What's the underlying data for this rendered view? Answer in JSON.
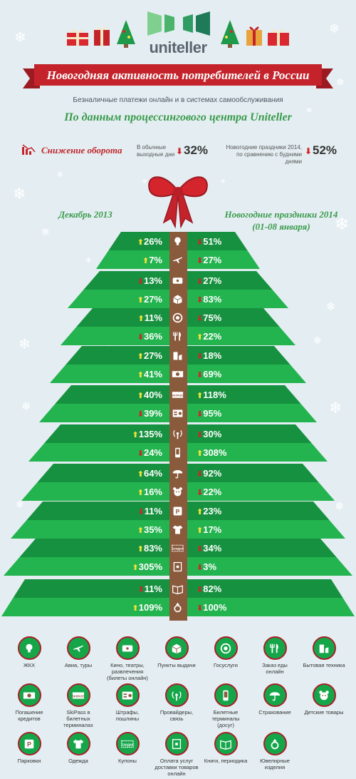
{
  "header": {
    "brand": "uniteller",
    "title": "Новогодняя активность потребителей в России",
    "subtitle": "Безналичные платежи онлайн и в системах самообслуживания",
    "source": "По данным процессингового центра Uniteller"
  },
  "decline": {
    "title": "Снижение оборота",
    "stat1_note_line1": "В обычные",
    "stat1_note_line2": "выходные дни",
    "stat1_value": "32%",
    "stat2_note_line1": "Новогодние праздники 2014,",
    "stat2_note_line2": "по сравнению с будними днями",
    "stat2_value": "52%"
  },
  "columns": {
    "left": "Декабрь 2013",
    "right_line1": "Новогодние праздники 2014",
    "right_line2": "(01-08 января)"
  },
  "rows": [
    {
      "left": "26%",
      "left_dir": "up",
      "right": "51%",
      "right_dir": "down",
      "icon": "lightbulb-icon"
    },
    {
      "left": "7%",
      "left_dir": "up",
      "right": "27%",
      "right_dir": "down",
      "icon": "airplane-icon"
    },
    {
      "left": "13%",
      "left_dir": "down",
      "right": "27%",
      "right_dir": "down",
      "icon": "ticket-icon"
    },
    {
      "left": "27%",
      "left_dir": "up",
      "right": "83%",
      "right_dir": "down",
      "icon": "package-icon"
    },
    {
      "left": "11%",
      "left_dir": "up",
      "right": "75%",
      "right_dir": "down",
      "icon": "government-icon"
    },
    {
      "left": "36%",
      "left_dir": "down",
      "right": "22%",
      "right_dir": "up",
      "icon": "fork-knife-icon"
    },
    {
      "left": "27%",
      "left_dir": "up",
      "right": "18%",
      "right_dir": "down",
      "icon": "appliance-icon"
    },
    {
      "left": "41%",
      "left_dir": "up",
      "right": "69%",
      "right_dir": "down",
      "icon": "banknote-icon"
    },
    {
      "left": "40%",
      "left_dir": "up",
      "right": "118%",
      "right_dir": "up",
      "icon": "skipass-icon"
    },
    {
      "left": "39%",
      "left_dir": "down",
      "right": "95%",
      "right_dir": "down",
      "icon": "fine-icon"
    },
    {
      "left": "135%",
      "left_dir": "up",
      "right": "30%",
      "right_dir": "down",
      "icon": "signal-icon"
    },
    {
      "left": "24%",
      "left_dir": "down",
      "right": "308%",
      "right_dir": "up",
      "icon": "phone-icon"
    },
    {
      "left": "64%",
      "left_dir": "up",
      "right": "92%",
      "right_dir": "down",
      "icon": "umbrella-icon"
    },
    {
      "left": "16%",
      "left_dir": "up",
      "right": "22%",
      "right_dir": "down",
      "icon": "teddy-icon"
    },
    {
      "left": "11%",
      "left_dir": "down",
      "right": "23%",
      "right_dir": "up",
      "icon": "parking-icon"
    },
    {
      "left": "35%",
      "left_dir": "up",
      "right": "17%",
      "right_dir": "up",
      "icon": "tshirt-icon"
    },
    {
      "left": "83%",
      "left_dir": "up",
      "right": "34%",
      "right_dir": "down",
      "icon": "coupon-icon"
    },
    {
      "left": "305%",
      "left_dir": "up",
      "right": "3%",
      "right_dir": "down",
      "icon": "delivery-icon"
    },
    {
      "left": "11%",
      "left_dir": "down",
      "right": "82%",
      "right_dir": "down",
      "icon": "book-icon"
    },
    {
      "left": "109%",
      "left_dir": "up",
      "right": "100%",
      "right_dir": "down",
      "icon": "ring-icon"
    }
  ],
  "icon_texts": {
    "skipass": "SKIPASS",
    "coupon": "СКИДКИ",
    "parking": "P"
  },
  "legend": [
    {
      "icon": "lightbulb-icon",
      "label": "ЖКХ"
    },
    {
      "icon": "airplane-icon",
      "label": "Авиа, туры"
    },
    {
      "icon": "ticket-icon",
      "label": "Кино, театры, развлечения (билеты онлайн)"
    },
    {
      "icon": "package-icon",
      "label": "Пункты выдачи"
    },
    {
      "icon": "government-icon",
      "label": "Госуслуги"
    },
    {
      "icon": "fork-knife-icon",
      "label": "Заказ еды онлайн"
    },
    {
      "icon": "appliance-icon",
      "label": "Бытовая техника"
    },
    {
      "icon": "banknote-icon",
      "label": "Погашение кредитов"
    },
    {
      "icon": "skipass-icon",
      "label": "SkiPass в билетных терминалах"
    },
    {
      "icon": "fine-icon",
      "label": "Штрафы, пошлины"
    },
    {
      "icon": "signal-icon",
      "label": "Провайдеры, связь"
    },
    {
      "icon": "phone-icon",
      "label": "Билетные терминалы (досуг)"
    },
    {
      "icon": "umbrella-icon",
      "label": "Страхование"
    },
    {
      "icon": "teddy-icon",
      "label": "Детские товары"
    },
    {
      "icon": "parking-icon",
      "label": "Парковки"
    },
    {
      "icon": "tshirt-icon",
      "label": "Одежда"
    },
    {
      "icon": "coupon-icon",
      "label": "Купоны"
    },
    {
      "icon": "delivery-icon",
      "label": "Оплата услуг доставки товаров онлайн"
    },
    {
      "icon": "book-icon",
      "label": "Книги, периодика"
    },
    {
      "icon": "ring-icon",
      "label": "Ювелирные изделия"
    }
  ],
  "colors": {
    "background": "#e4eef2",
    "tree_light": "#23b34f",
    "tree_dark": "#16913f",
    "trunk": "#8a5a3c",
    "ribbon_red": "#c4232b",
    "arrow_up": "#f2e33a",
    "arrow_down": "#d32228"
  }
}
